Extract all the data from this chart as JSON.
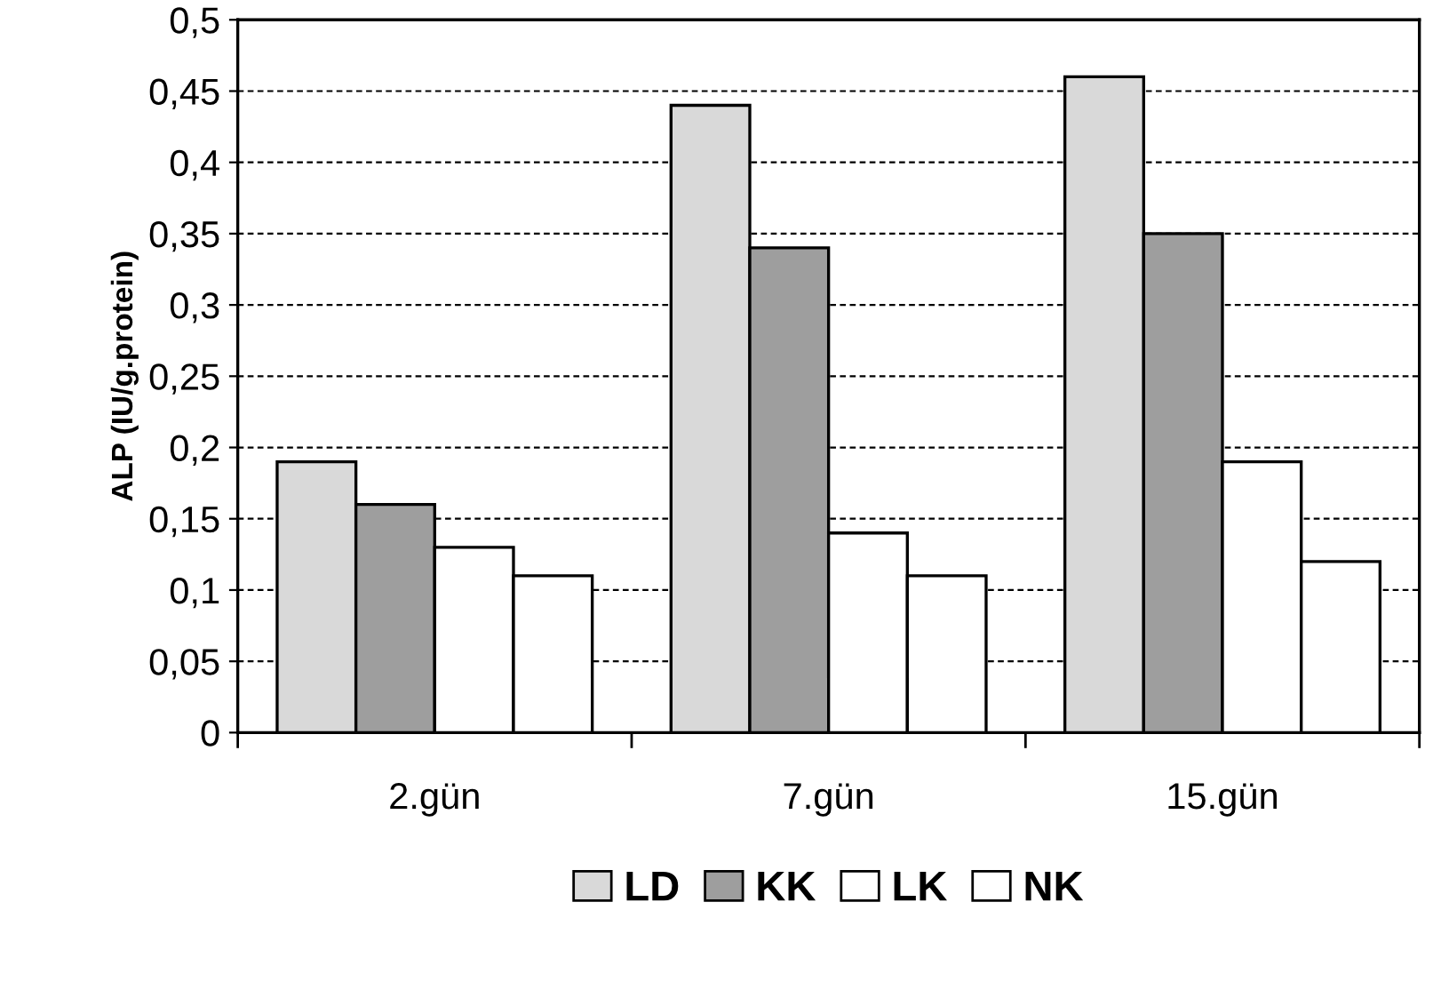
{
  "chart_data": {
    "type": "bar",
    "ylabel": "ALP (IU/g.protein)",
    "categories": [
      "2.gün",
      "7.gün",
      "15.gün"
    ],
    "series": [
      {
        "name": "LD",
        "color": "#d9d9d9",
        "values": [
          0.19,
          0.44,
          0.46
        ]
      },
      {
        "name": "KK",
        "color": "#9e9e9e",
        "values": [
          0.16,
          0.34,
          0.35
        ]
      },
      {
        "name": "LK",
        "color": "#ffffff",
        "values": [
          0.13,
          0.14,
          0.19
        ]
      },
      {
        "name": "NK",
        "color": "#ffffff",
        "values": [
          0.11,
          0.11,
          0.12
        ]
      }
    ],
    "ylim": [
      0,
      0.5
    ],
    "yticks": [
      {
        "value": 0,
        "label": "0"
      },
      {
        "value": 0.05,
        "label": "0,05"
      },
      {
        "value": 0.1,
        "label": "0,1"
      },
      {
        "value": 0.15,
        "label": "0,15"
      },
      {
        "value": 0.2,
        "label": "0,2"
      },
      {
        "value": 0.25,
        "label": "0,25"
      },
      {
        "value": 0.3,
        "label": "0,3"
      },
      {
        "value": 0.35,
        "label": "0,35"
      },
      {
        "value": 0.4,
        "label": "0,4"
      },
      {
        "value": 0.45,
        "label": "0,45"
      },
      {
        "value": 0.5,
        "label": "0,5"
      }
    ],
    "grid": "y",
    "legend": "bottom"
  }
}
